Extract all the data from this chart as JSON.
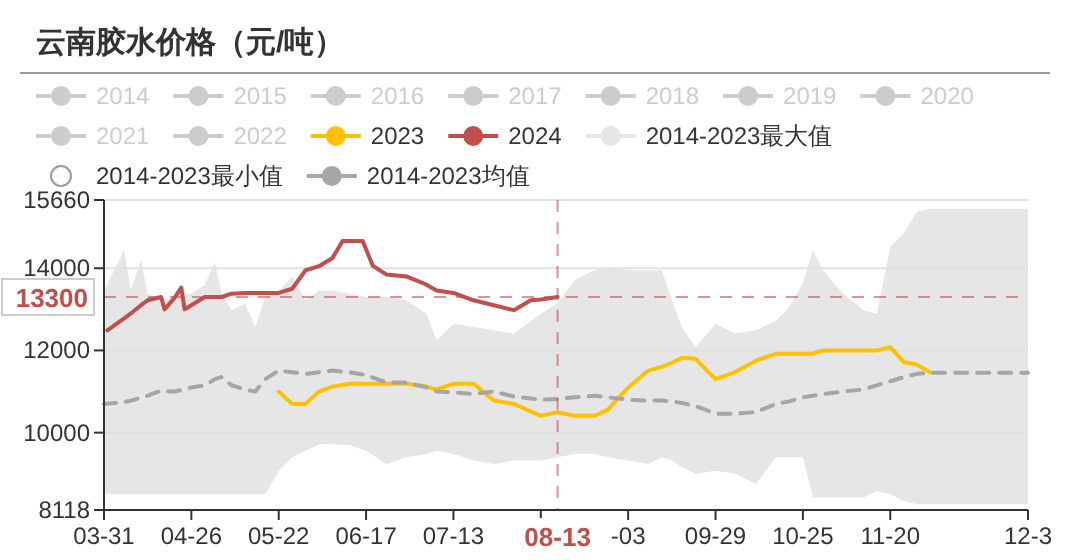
{
  "chart_data": {
    "type": "line",
    "title": "云南胶水价格（元/吨）",
    "legend": "top",
    "grid": "y",
    "marker": "none",
    "x": [
      "--03-31",
      "--04-06",
      "--04-08",
      "--04-11",
      "--04-13",
      "--04-17",
      "--04-21",
      "--04-26",
      "--04-30",
      "--05-03",
      "--05-05",
      "--05-08",
      "--05-12",
      "--05-15",
      "--05-18",
      "--05-22",
      "--05-26",
      "--05-30",
      "--06-03",
      "--06-07",
      "--06-12",
      "--06-17",
      "--06-23",
      "--06-29",
      "--07-05",
      "--07-08",
      "--07-13",
      "--07-19",
      "--07-25",
      "--07-31",
      "--08-08",
      "--08-13",
      "--08-18",
      "--08-24",
      "--08-28",
      "--09-03",
      "--09-09",
      "--09-13",
      "--09-16",
      "--09-19",
      "--09-23",
      "--09-29",
      "--10-05",
      "--10-11",
      "--10-17",
      "--10-21",
      "--10-25",
      "--10-28",
      "--10-31",
      "--11-06",
      "--11-12",
      "--11-16",
      "--11-20",
      "--11-24",
      "--11-28",
      "--12-02",
      "--12-11",
      "--12-21",
      "--12-31"
    ],
    "xlim": [
      "--03-31",
      "--12-31"
    ],
    "xticks": [
      {
        "value": "--03-31",
        "label": "03-31"
      },
      {
        "value": "--04-26",
        "label": "04-26"
      },
      {
        "value": "--05-22",
        "label": "05-22"
      },
      {
        "value": "--06-17",
        "label": "06-17"
      },
      {
        "value": "--07-13",
        "label": "07-13"
      },
      {
        "value": "--08-08",
        "label": null
      },
      {
        "value": "--09-03",
        "label": "-03"
      },
      {
        "value": "--09-29",
        "label": "09-29"
      },
      {
        "value": "--10-25",
        "label": "10-25"
      },
      {
        "value": "--11-20",
        "label": "11-20"
      },
      {
        "value": "--12-31",
        "label": "12-3"
      }
    ],
    "ylim": [
      8118,
      15660
    ],
    "yticks": [
      8118,
      10000,
      12000,
      14000,
      15660
    ],
    "ref_lines": [
      {
        "axis": "y",
        "value": 13300,
        "label": "13300",
        "color": "#c0504d",
        "line_style": "dashed"
      },
      {
        "axis": "x",
        "value": "--08-13",
        "label": "08-13",
        "color": "#c0504d",
        "line_style": "dashed"
      }
    ],
    "series": [
      {
        "name": "2014",
        "color": "#cccccc",
        "values": [
          null,
          null,
          null,
          null,
          null,
          null,
          null,
          null,
          null,
          null,
          null,
          null,
          null,
          null,
          null,
          null,
          null,
          null,
          null,
          null,
          null,
          null,
          null,
          null,
          null,
          null,
          null,
          null,
          null,
          null,
          null,
          null,
          null,
          null,
          null,
          null,
          null,
          null,
          null,
          null,
          null,
          null,
          null,
          null,
          null,
          null,
          null,
          null,
          null,
          null,
          null,
          null,
          null,
          null,
          null,
          null,
          null,
          null,
          null
        ]
      },
      {
        "name": "2015",
        "color": "#cccccc",
        "values": [
          null,
          null,
          null,
          null,
          null,
          null,
          null,
          null,
          null,
          null,
          null,
          null,
          null,
          null,
          null,
          null,
          null,
          null,
          null,
          null,
          null,
          null,
          null,
          null,
          null,
          null,
          null,
          null,
          null,
          null,
          null,
          null,
          null,
          null,
          null,
          null,
          null,
          null,
          null,
          null,
          null,
          null,
          null,
          null,
          null,
          null,
          null,
          null,
          null,
          null,
          null,
          null,
          null,
          null,
          null,
          null,
          null,
          null,
          null
        ]
      },
      {
        "name": "2016",
        "color": "#cccccc",
        "values": [
          null,
          null,
          null,
          null,
          null,
          null,
          null,
          null,
          null,
          null,
          null,
          null,
          null,
          null,
          null,
          null,
          null,
          null,
          null,
          null,
          null,
          null,
          null,
          null,
          null,
          null,
          null,
          null,
          null,
          null,
          null,
          null,
          null,
          null,
          null,
          null,
          null,
          null,
          null,
          null,
          null,
          null,
          null,
          null,
          null,
          null,
          null,
          null,
          null,
          null,
          null,
          null,
          null,
          null,
          null,
          null,
          null,
          null,
          null
        ]
      },
      {
        "name": "2017",
        "color": "#cccccc",
        "values": [
          null,
          null,
          null,
          null,
          null,
          null,
          null,
          null,
          null,
          null,
          null,
          null,
          null,
          null,
          null,
          null,
          null,
          null,
          null,
          null,
          null,
          null,
          null,
          null,
          null,
          null,
          null,
          null,
          null,
          null,
          null,
          null,
          null,
          null,
          null,
          null,
          null,
          null,
          null,
          null,
          null,
          null,
          null,
          null,
          null,
          null,
          null,
          null,
          null,
          null,
          null,
          null,
          null,
          null,
          null,
          null,
          null,
          null,
          null
        ]
      },
      {
        "name": "2018",
        "color": "#cccccc",
        "values": [
          null,
          null,
          null,
          null,
          null,
          null,
          null,
          null,
          null,
          null,
          null,
          null,
          null,
          null,
          null,
          null,
          null,
          null,
          null,
          null,
          null,
          null,
          null,
          null,
          null,
          null,
          null,
          null,
          null,
          null,
          null,
          null,
          null,
          null,
          null,
          null,
          null,
          null,
          null,
          null,
          null,
          null,
          null,
          null,
          null,
          null,
          null,
          null,
          null,
          null,
          null,
          null,
          null,
          null,
          null,
          null,
          null,
          null,
          null
        ]
      },
      {
        "name": "2019",
        "color": "#cccccc",
        "values": [
          null,
          null,
          null,
          null,
          null,
          null,
          null,
          null,
          null,
          null,
          null,
          null,
          null,
          null,
          null,
          null,
          null,
          null,
          null,
          null,
          null,
          null,
          null,
          null,
          null,
          null,
          null,
          null,
          null,
          null,
          null,
          null,
          null,
          null,
          null,
          null,
          null,
          null,
          null,
          null,
          null,
          null,
          null,
          null,
          null,
          null,
          null,
          null,
          null,
          null,
          null,
          null,
          null,
          null,
          null,
          null,
          null,
          null,
          null
        ]
      },
      {
        "name": "2020",
        "color": "#cccccc",
        "values": [
          null,
          null,
          null,
          null,
          null,
          null,
          null,
          null,
          null,
          null,
          null,
          null,
          null,
          null,
          null,
          null,
          null,
          null,
          null,
          null,
          null,
          null,
          null,
          null,
          null,
          null,
          null,
          null,
          null,
          null,
          null,
          null,
          null,
          null,
          null,
          null,
          null,
          null,
          null,
          null,
          null,
          null,
          null,
          null,
          null,
          null,
          null,
          null,
          null,
          null,
          null,
          null,
          null,
          null,
          null,
          null,
          null,
          null,
          null
        ]
      },
      {
        "name": "2021",
        "color": "#cccccc",
        "values": [
          null,
          null,
          null,
          null,
          null,
          null,
          null,
          null,
          null,
          null,
          null,
          null,
          null,
          null,
          null,
          null,
          null,
          null,
          null,
          null,
          null,
          null,
          null,
          null,
          null,
          null,
          null,
          null,
          null,
          null,
          null,
          null,
          null,
          null,
          null,
          null,
          null,
          null,
          null,
          null,
          null,
          null,
          null,
          null,
          null,
          null,
          null,
          null,
          null,
          null,
          null,
          null,
          null,
          null,
          null,
          null,
          null,
          null,
          null
        ]
      },
      {
        "name": "2022",
        "color": "#cccccc",
        "values": [
          null,
          null,
          null,
          null,
          null,
          null,
          null,
          null,
          null,
          null,
          null,
          null,
          null,
          null,
          null,
          null,
          null,
          null,
          null,
          null,
          null,
          null,
          null,
          null,
          null,
          null,
          null,
          null,
          null,
          null,
          null,
          null,
          null,
          null,
          null,
          null,
          null,
          null,
          null,
          null,
          null,
          null,
          null,
          null,
          null,
          null,
          null,
          null,
          null,
          null,
          null,
          null,
          null,
          null,
          null,
          null,
          null,
          null,
          null
        ]
      },
      {
        "name": "2023",
        "color": "#ffc000",
        "x": [
          "--05-22",
          "--05-26",
          "--05-30",
          "--06-03",
          "--06-07",
          "--06-12",
          "--06-17",
          "--06-23",
          "--06-29",
          "--07-05",
          "--07-08",
          "--07-13",
          "--07-19",
          "--07-25",
          "--07-31",
          "--08-08",
          "--08-13",
          "--08-18",
          "--08-24",
          "--08-28",
          "--09-03",
          "--09-09",
          "--09-13",
          "--09-16",
          "--09-19",
          "--09-23",
          "--09-29",
          "--10-05",
          "--10-11",
          "--10-17",
          "--10-21",
          "--10-25",
          "--10-28",
          "--10-31",
          "--11-06",
          "--11-12",
          "--11-16",
          "--11-20",
          "--11-24",
          "--11-28",
          "--12-02"
        ],
        "values": [
          11000,
          10700,
          10700,
          11000,
          11120,
          11190,
          11190,
          11190,
          11190,
          11120,
          11050,
          11190,
          11190,
          10780,
          10700,
          10410,
          10500,
          10410,
          10410,
          10560,
          11100,
          11510,
          11600,
          11700,
          11820,
          11800,
          11300,
          11480,
          11750,
          11920,
          11920,
          11920,
          11920,
          12000,
          12000,
          12000,
          12000,
          12080,
          11720,
          11650,
          11460
        ]
      },
      {
        "name": "2024",
        "color": "#c0504d",
        "x": [
          "--04-01",
          "--04-06",
          "--04-08",
          "--04-11",
          "--04-13",
          "--04-17",
          "--04-18",
          "--04-21",
          "--04-23",
          "--04-24",
          "--04-26",
          "--04-30",
          "--05-03",
          "--05-05",
          "--05-08",
          "--05-12",
          "--05-15",
          "--05-18",
          "--05-22",
          "--05-26",
          "--05-30",
          "--06-03",
          "--06-07",
          "--06-10",
          "--06-16",
          "--06-19",
          "--06-23",
          "--06-29",
          "--07-05",
          "--07-08",
          "--07-13",
          "--07-19",
          "--07-25",
          "--07-31",
          "--08-05",
          "--08-08",
          "--08-13"
        ],
        "values": [
          12490,
          12780,
          12900,
          13100,
          13220,
          13300,
          13000,
          13280,
          13530,
          13000,
          13100,
          13300,
          13300,
          13300,
          13380,
          13400,
          13400,
          13400,
          13400,
          13500,
          13950,
          14050,
          14250,
          14660,
          14660,
          14060,
          13850,
          13800,
          13600,
          13460,
          13400,
          13220,
          13100,
          12980,
          13220,
          13240,
          13300
        ]
      },
      {
        "name": "2014-2023最大值",
        "type": "area",
        "color": "#e6e6e6",
        "values": [
          13460,
          14440,
          13460,
          14200,
          13380,
          13220,
          13300,
          13380,
          13600,
          14150,
          13380,
          12980,
          13140,
          12570,
          13300,
          13460,
          13790,
          13220,
          13460,
          13460,
          13380,
          13300,
          13300,
          13220,
          12890,
          12240,
          12650,
          12570,
          12490,
          12410,
          12890,
          13140,
          13710,
          13950,
          14030,
          13950,
          13950,
          13950,
          13220,
          12570,
          12080,
          12650,
          12410,
          12490,
          12730,
          13060,
          13630,
          14440,
          13950,
          13380,
          12980,
          12890,
          14520,
          14850,
          15380,
          15450,
          15450,
          15450,
          15450
        ]
      },
      {
        "name": "2014-2023最小值",
        "type": "area",
        "color": "#ffffff",
        "values": [
          8500,
          8500,
          8500,
          8500,
          8500,
          8500,
          8500,
          8500,
          8500,
          8500,
          8500,
          8500,
          8500,
          8500,
          8500,
          9070,
          9400,
          9560,
          9720,
          9720,
          9700,
          9560,
          9240,
          9400,
          9480,
          9560,
          9480,
          9320,
          9240,
          9320,
          9320,
          9400,
          9480,
          9480,
          9400,
          9320,
          9240,
          9400,
          9320,
          9160,
          9000,
          9070,
          9000,
          8750,
          9400,
          9400,
          9400,
          8420,
          8420,
          8420,
          8420,
          8580,
          8500,
          8340,
          8260,
          8260,
          8260,
          8260,
          8260
        ]
      },
      {
        "name": "2014-2023均值",
        "color": "#a6a6a6",
        "line_style": "dashed",
        "values": [
          10700,
          10740,
          10780,
          10850,
          10900,
          11020,
          11000,
          11100,
          11150,
          11300,
          11350,
          11150,
          11050,
          11000,
          11300,
          11510,
          11470,
          11430,
          11470,
          11510,
          11470,
          11400,
          11220,
          11220,
          11100,
          11000,
          10980,
          10940,
          11000,
          10880,
          10800,
          10820,
          10860,
          10900,
          10860,
          10800,
          10780,
          10780,
          10760,
          10720,
          10650,
          10460,
          10460,
          10500,
          10700,
          10760,
          10860,
          10900,
          10940,
          11000,
          11050,
          11150,
          11250,
          11350,
          11430,
          11460,
          11460,
          11460,
          11460
        ]
      }
    ]
  }
}
